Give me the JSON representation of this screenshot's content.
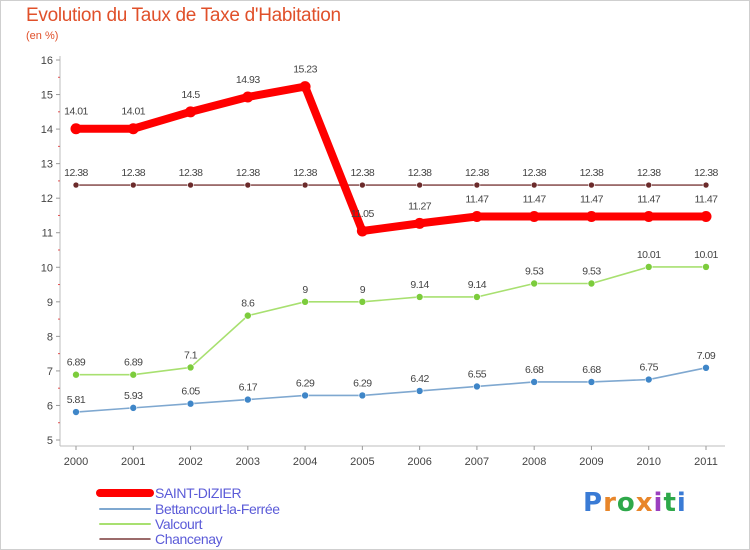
{
  "header": {
    "title": "Evolution du Taux de Taxe d'Habitation",
    "subtitle": "(en %)"
  },
  "logo": {
    "text": "Proxiti",
    "colors": [
      "#3a7bd5",
      "#e8862a",
      "#2ea84a",
      "#e8862a",
      "#9b3fbf",
      "#2ea84a",
      "#3a7bd5"
    ]
  },
  "chart_data": {
    "type": "line",
    "x": [
      "2000",
      "2001",
      "2002",
      "2003",
      "2004",
      "2005",
      "2006",
      "2007",
      "2008",
      "2009",
      "2010",
      "2011"
    ],
    "ylim": [
      5,
      16
    ],
    "yticks": [
      5,
      6,
      7,
      8,
      9,
      10,
      11,
      12,
      13,
      14,
      15,
      16
    ],
    "grid": false,
    "legend_position": "bottom-left",
    "series": [
      {
        "name": "SAINT-DIZIER",
        "values": [
          14.01,
          14.01,
          14.5,
          14.93,
          15.23,
          11.05,
          11.27,
          11.47,
          11.47,
          11.47,
          11.47,
          11.47
        ],
        "labels": [
          "14.01",
          "14.01",
          "14.5",
          "14.93",
          "15.23",
          "11.05",
          "11.27",
          "11.47",
          "11.47",
          "11.47",
          "11.47",
          "11.47"
        ],
        "color": "#ff0000",
        "marker": "#ff0000"
      },
      {
        "name": "Bettancourt-la-Ferrée",
        "values": [
          5.81,
          5.93,
          6.05,
          6.17,
          6.29,
          6.29,
          6.42,
          6.55,
          6.68,
          6.68,
          6.75,
          7.09
        ],
        "labels": [
          "5.81",
          "5.93",
          "6.05",
          "6.17",
          "6.29",
          "6.29",
          "6.42",
          "6.55",
          "6.68",
          "6.68",
          "6.75",
          "7.09"
        ],
        "color": "#7fa8d0",
        "marker": "#3f86c8"
      },
      {
        "name": "Valcourt",
        "values": [
          6.89,
          6.89,
          7.1,
          8.6,
          9,
          9,
          9.14,
          9.14,
          9.53,
          9.53,
          10.01,
          10.01
        ],
        "labels": [
          "6.89",
          "6.89",
          "7.1",
          "8.6",
          "9",
          "9",
          "9.14",
          "9.14",
          "9.53",
          "9.53",
          "10.01",
          "10.01"
        ],
        "color": "#a8e070",
        "marker": "#7ccc3c"
      },
      {
        "name": "Chancenay",
        "values": [
          12.38,
          12.38,
          12.38,
          12.38,
          12.38,
          12.38,
          12.38,
          12.38,
          12.38,
          12.38,
          12.38,
          12.38
        ],
        "labels": [
          "12.38",
          "12.38",
          "12.38",
          "12.38",
          "12.38",
          "12.38",
          "12.38",
          "12.38",
          "12.38",
          "12.38",
          "12.38",
          "12.38"
        ],
        "color": "#7a3a3a",
        "marker": "#6b2a2a"
      }
    ]
  }
}
